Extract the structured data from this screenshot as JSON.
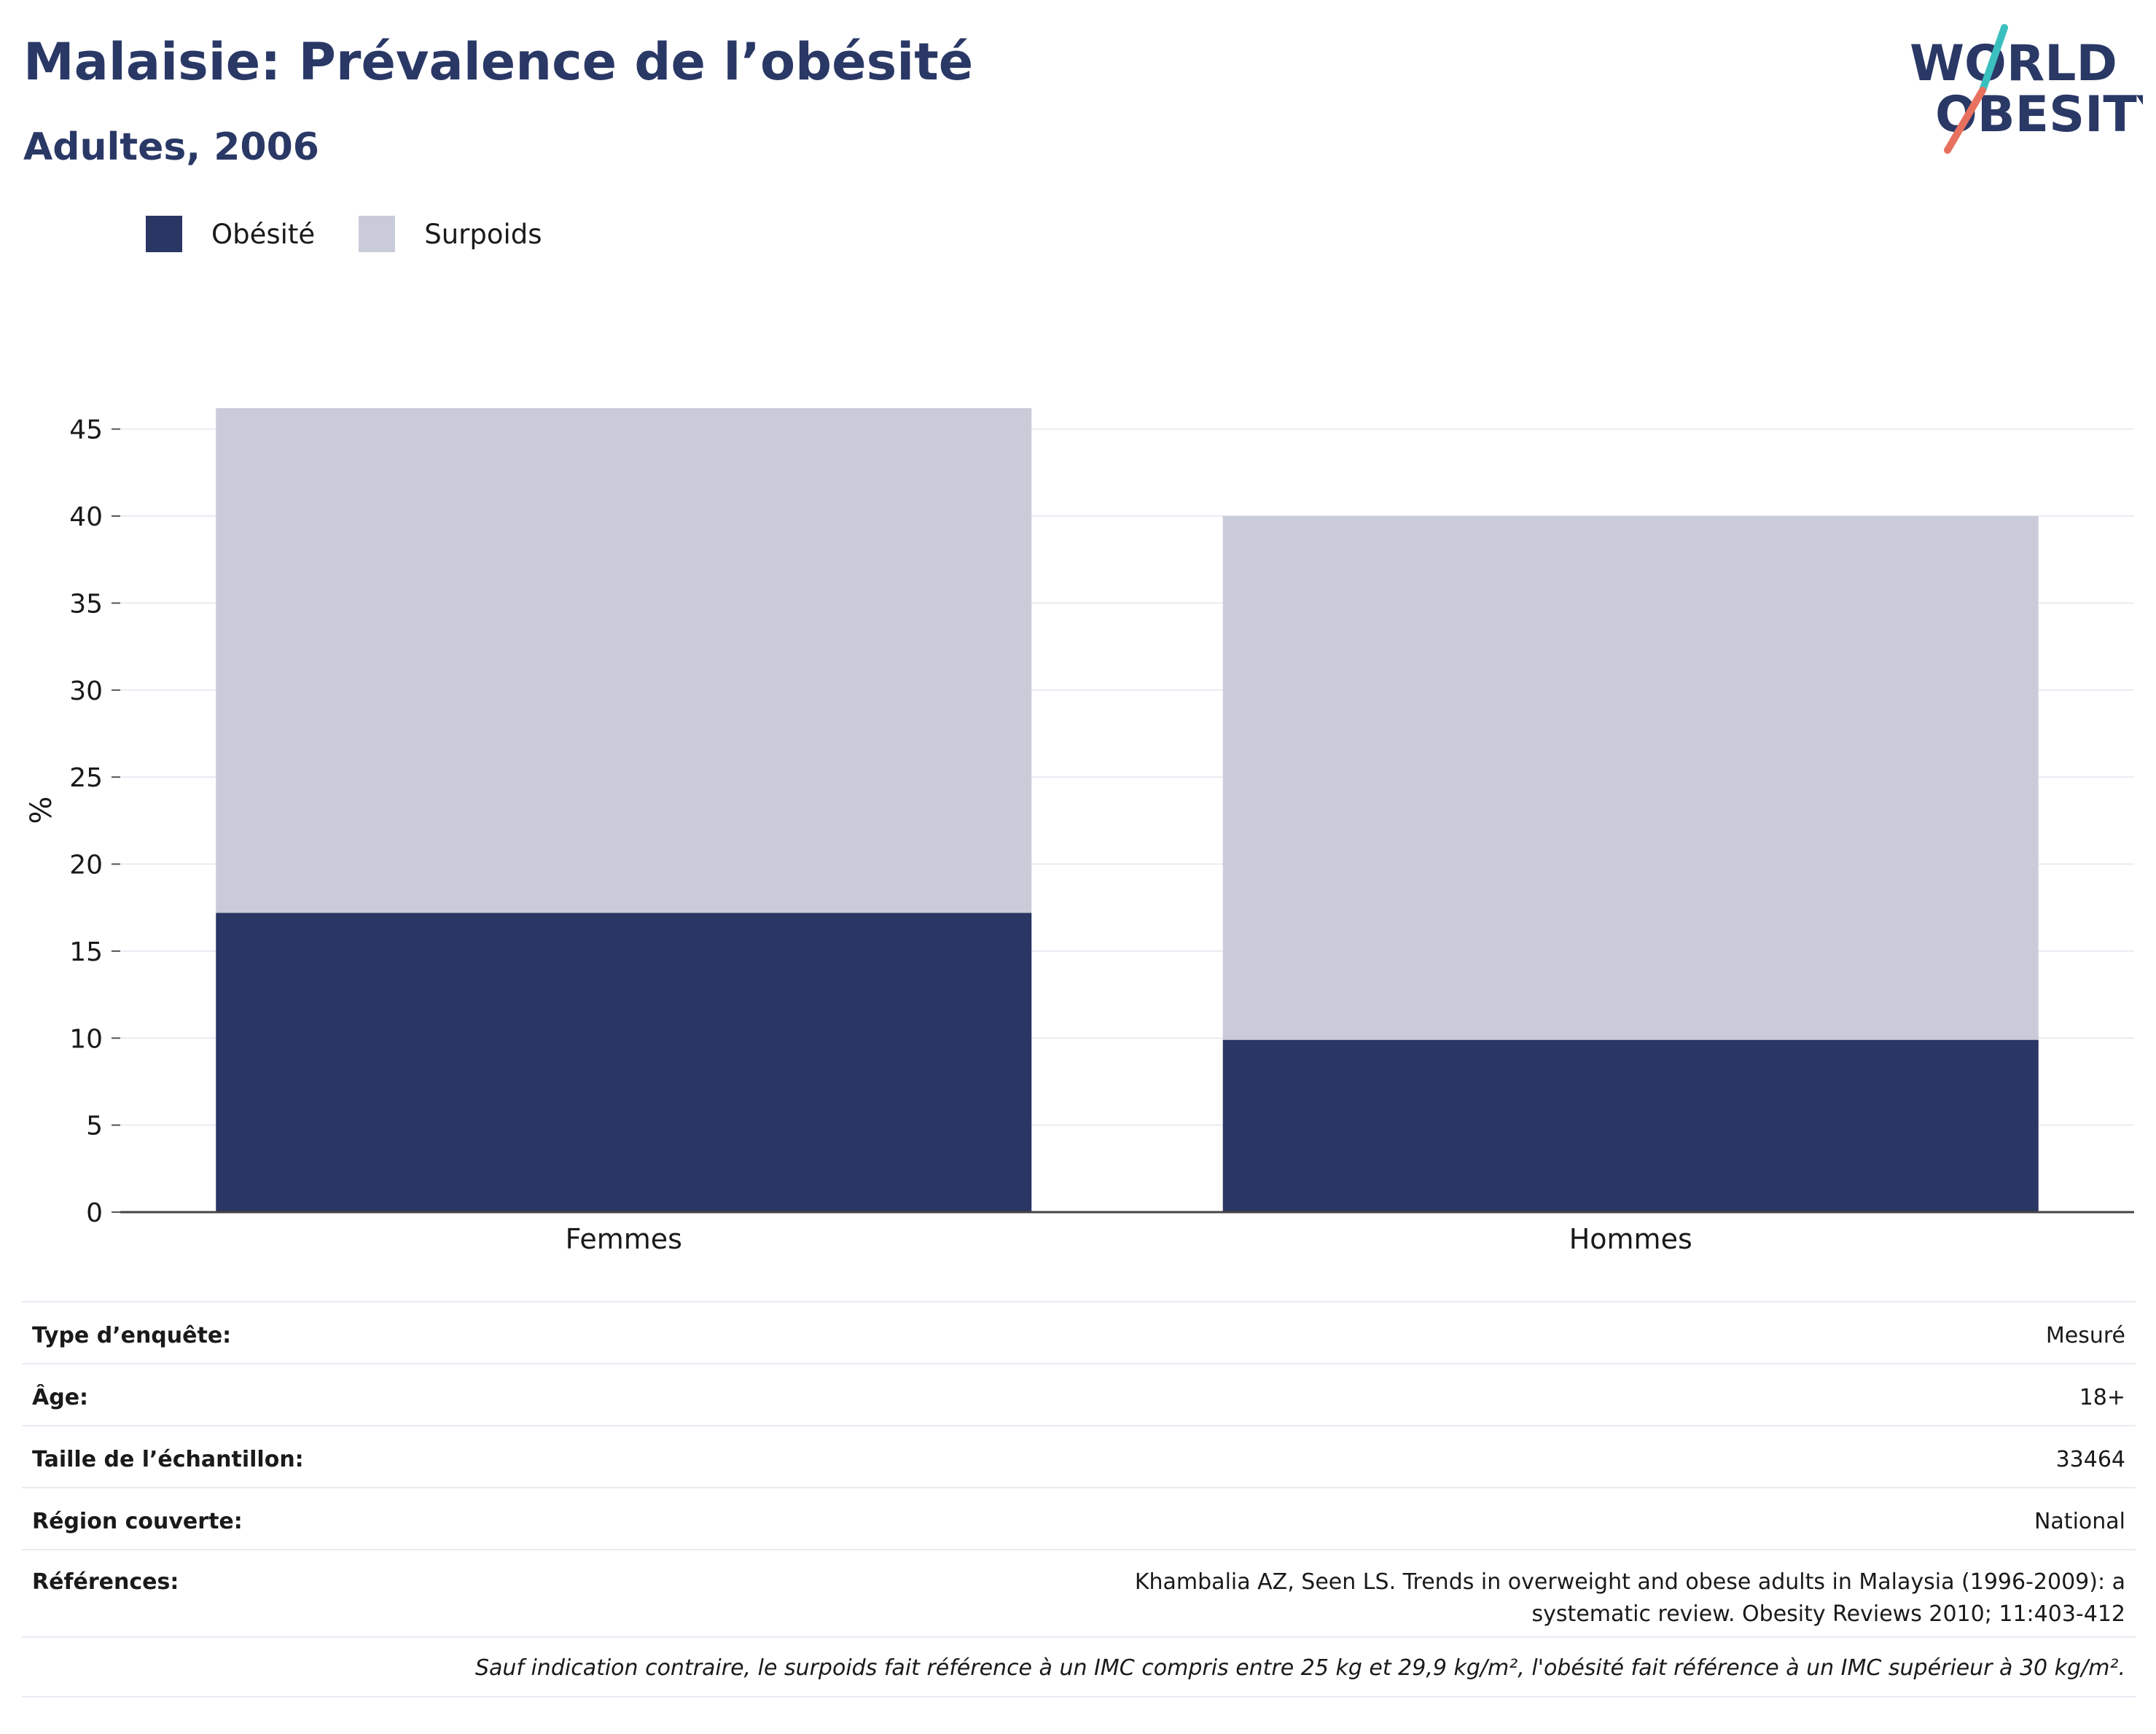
{
  "header": {
    "title": "Malaisie: Prévalence de l’obésité",
    "subtitle": "Adultes, 2006"
  },
  "logo": {
    "line1": "WORLD",
    "line2": "OBESITY"
  },
  "legend": {
    "items": [
      {
        "label": "Obésité",
        "color": "#2a3664"
      },
      {
        "label": "Surpoids",
        "color": "#c9ccd8"
      }
    ]
  },
  "chart_data": {
    "type": "bar",
    "stacked": true,
    "categories": [
      "Femmes",
      "Hommes"
    ],
    "series": [
      {
        "name": "Obésité",
        "values": [
          17.2,
          9.9
        ],
        "color": "#2a3664"
      },
      {
        "name": "Surpoids",
        "values": [
          29.0,
          30.1
        ],
        "color": "#c9ccd8"
      }
    ],
    "xlabel": "",
    "ylabel": "%",
    "ylim": [
      0,
      46.2
    ],
    "yticks": [
      0,
      5,
      10,
      15,
      20,
      25,
      30,
      35,
      40,
      45
    ],
    "grid": true,
    "legend_position": "top-left"
  },
  "info": {
    "rows": [
      {
        "label": "Type d’enquête:",
        "value": "Mesuré"
      },
      {
        "label": "Âge:",
        "value": "18+"
      },
      {
        "label": "Taille de l’échantillon:",
        "value": "33464"
      },
      {
        "label": "Région couverte:",
        "value": "National"
      },
      {
        "label": "Références:",
        "value": "Khambalia AZ, Seen LS. Trends in overweight and obese adults in Malaysia (1996-2009): a systematic review. Obesity Reviews 2010; 11:403-412"
      }
    ],
    "note": "Sauf indication contraire, le surpoids fait référence à un IMC compris entre 25 kg et 29,9 kg/m², l'obésité fait référence à un IMC supérieur à 30 kg/m²."
  }
}
